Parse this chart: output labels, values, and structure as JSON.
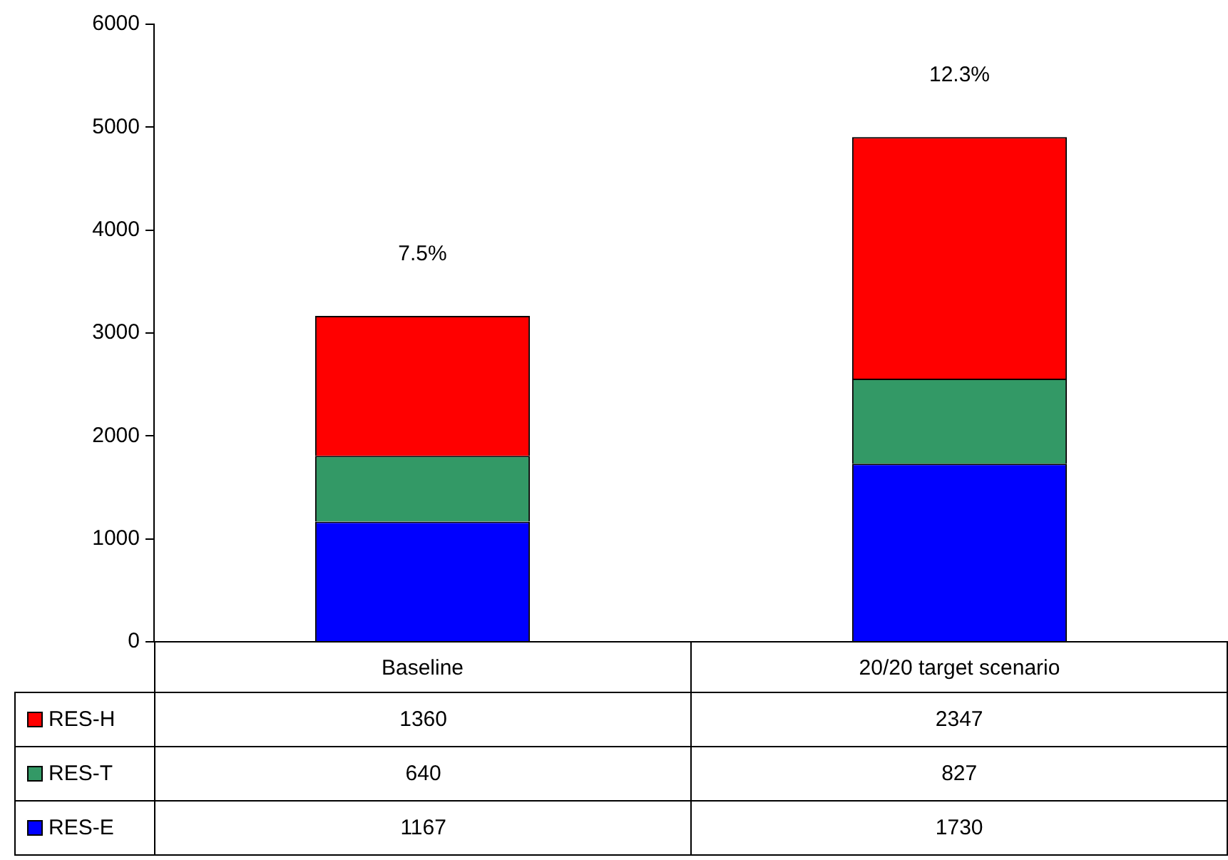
{
  "chart_data": {
    "type": "bar",
    "stacked": true,
    "categories": [
      "Baseline",
      "20/20 target scenario"
    ],
    "series": [
      {
        "name": "RES-E",
        "color": "#0000ff",
        "values": [
          1167,
          1730
        ]
      },
      {
        "name": "RES-T",
        "color": "#339966",
        "values": [
          640,
          827
        ]
      },
      {
        "name": "RES-H",
        "color": "#ff0000",
        "values": [
          1360,
          2347
        ]
      }
    ],
    "ylim": [
      0,
      6000
    ],
    "yticks": [
      0,
      1000,
      2000,
      3000,
      4000,
      5000,
      6000
    ],
    "grid": false,
    "legend": "bottom left",
    "data_labels": true,
    "annotations": [
      "7.5%",
      "12.3%"
    ]
  }
}
